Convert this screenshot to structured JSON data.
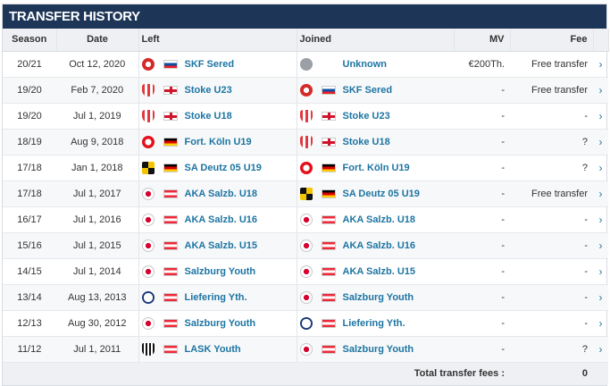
{
  "title": "TRANSFER HISTORY",
  "columns": {
    "season": "Season",
    "date": "Date",
    "left": "Left",
    "joined": "Joined",
    "mv": "MV",
    "fee": "Fee"
  },
  "rows": [
    {
      "season": "20/21",
      "date": "Oct 12, 2020",
      "left": "SKF Sered",
      "left_crest": "cr-red",
      "left_flag": "fl-sk",
      "joined": "Unknown",
      "joined_crest": "cr-unk",
      "joined_flag": "",
      "mv": "€200Th.",
      "fee": "Free transfer"
    },
    {
      "season": "19/20",
      "date": "Feb 7, 2020",
      "left": "Stoke U23",
      "left_crest": "cr-stoke",
      "left_flag": "fl-en",
      "joined": "SKF Sered",
      "joined_crest": "cr-red",
      "joined_flag": "fl-sk",
      "mv": "-",
      "fee": "Free transfer"
    },
    {
      "season": "19/20",
      "date": "Jul 1, 2019",
      "left": "Stoke U18",
      "left_crest": "cr-stoke",
      "left_flag": "fl-en",
      "joined": "Stoke U23",
      "joined_crest": "cr-stoke",
      "joined_flag": "fl-en",
      "mv": "-",
      "fee": "-"
    },
    {
      "season": "18/19",
      "date": "Aug 9, 2018",
      "left": "Fort. Köln U19",
      "left_crest": "cr-koln",
      "left_flag": "fl-de",
      "joined": "Stoke U18",
      "joined_crest": "cr-stoke",
      "joined_flag": "fl-en",
      "mv": "-",
      "fee": "?"
    },
    {
      "season": "17/18",
      "date": "Jan 1, 2018",
      "left": "SA Deutz 05 U19",
      "left_crest": "cr-deutz",
      "left_flag": "fl-de",
      "joined": "Fort. Köln U19",
      "joined_crest": "cr-koln",
      "joined_flag": "fl-de",
      "mv": "-",
      "fee": "?"
    },
    {
      "season": "17/18",
      "date": "Jul 1, 2017",
      "left": "AKA Salzb. U18",
      "left_crest": "cr-rb",
      "left_flag": "fl-at",
      "joined": "SA Deutz 05 U19",
      "joined_crest": "cr-deutz",
      "joined_flag": "fl-de",
      "mv": "-",
      "fee": "Free transfer"
    },
    {
      "season": "16/17",
      "date": "Jul 1, 2016",
      "left": "AKA Salzb. U16",
      "left_crest": "cr-rb",
      "left_flag": "fl-at",
      "joined": "AKA Salzb. U18",
      "joined_crest": "cr-rb",
      "joined_flag": "fl-at",
      "mv": "-",
      "fee": "-"
    },
    {
      "season": "15/16",
      "date": "Jul 1, 2015",
      "left": "AKA Salzb. U15",
      "left_crest": "cr-rb",
      "left_flag": "fl-at",
      "joined": "AKA Salzb. U16",
      "joined_crest": "cr-rb",
      "joined_flag": "fl-at",
      "mv": "-",
      "fee": "-"
    },
    {
      "season": "14/15",
      "date": "Jul 1, 2014",
      "left": "Salzburg Youth",
      "left_crest": "cr-rb",
      "left_flag": "fl-at",
      "joined": "AKA Salzb. U15",
      "joined_crest": "cr-rb",
      "joined_flag": "fl-at",
      "mv": "-",
      "fee": "-"
    },
    {
      "season": "13/14",
      "date": "Aug 13, 2013",
      "left": "Liefering Yth.",
      "left_crest": "cr-lief",
      "left_flag": "fl-at",
      "joined": "Salzburg Youth",
      "joined_crest": "cr-rb",
      "joined_flag": "fl-at",
      "mv": "-",
      "fee": "-"
    },
    {
      "season": "12/13",
      "date": "Aug 30, 2012",
      "left": "Salzburg Youth",
      "left_crest": "cr-rb",
      "left_flag": "fl-at",
      "joined": "Liefering Yth.",
      "joined_crest": "cr-lief",
      "joined_flag": "fl-at",
      "mv": "-",
      "fee": "-"
    },
    {
      "season": "11/12",
      "date": "Jul 1, 2011",
      "left": "LASK Youth",
      "left_crest": "cr-lask",
      "left_flag": "fl-at",
      "joined": "Salzburg Youth",
      "joined_crest": "cr-rb",
      "joined_flag": "fl-at",
      "mv": "-",
      "fee": "?"
    }
  ],
  "footer": {
    "label": "Total transfer fees :",
    "value": "0"
  },
  "chevron": "›"
}
